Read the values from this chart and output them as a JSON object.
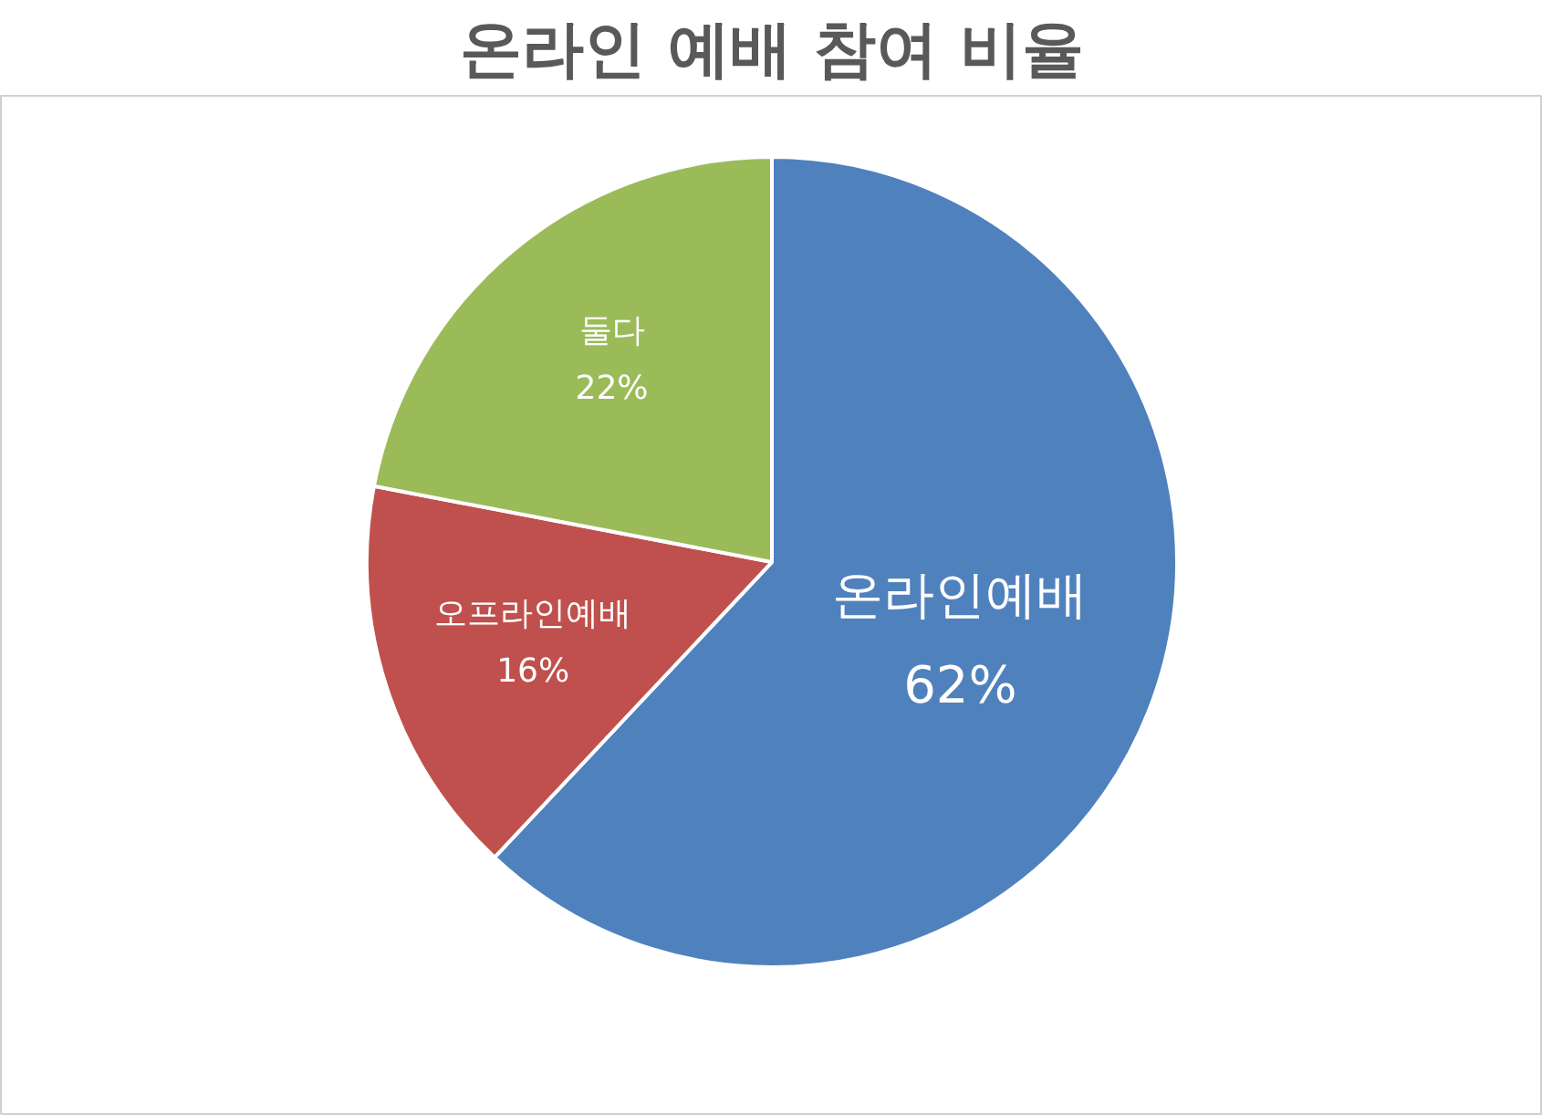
{
  "chart_data": {
    "type": "pie",
    "title": "온라인 예배 참여 비율",
    "categories": [
      "온라인예배",
      "오프라인예배",
      "둘다"
    ],
    "values": [
      62,
      16,
      22
    ],
    "colors": [
      "#4f81bd",
      "#c0504d",
      "#9bbb59"
    ],
    "value_labels": [
      "62%",
      "16%",
      "22%"
    ]
  }
}
